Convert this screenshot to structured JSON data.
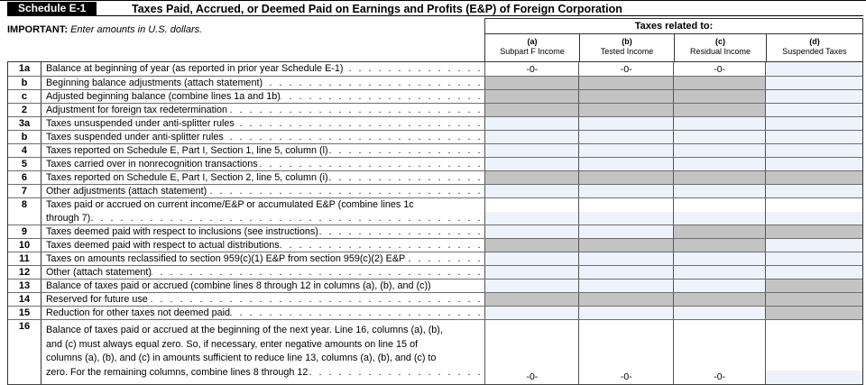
{
  "header": {
    "schedule_label": "Schedule E-1",
    "title": "Taxes Paid, Accrued, or Deemed Paid on Earnings and Profits (E&P) of Foreign Corporation",
    "important_label": "IMPORTANT:",
    "important_note": " Enter amounts in U.S. dollars."
  },
  "columns": {
    "group_label": "Taxes related to:",
    "cols": [
      {
        "letter": "(a)",
        "label": "Subpart F Income"
      },
      {
        "letter": "(b)",
        "label": "Tested Income"
      },
      {
        "letter": "(c)",
        "label": "Residual Income"
      },
      {
        "letter": "(d)",
        "label": "Suspended Taxes"
      }
    ]
  },
  "colors": {
    "shaded": "#c3c3c3",
    "fillable": "#eef2fb"
  },
  "leader_dots": ". . . . . . . . . . . . . . . . . . . . . . . . . . . . . . . . . . . . . . . . . . . . . . . . . . . . . . . . . . . . . . . . . . . . . . . . . . . . . . . .",
  "rows": [
    {
      "num": "1a",
      "lines": [
        "Balance at beginning of year (as reported in prior year Schedule E-1)"
      ],
      "leader": true,
      "h": 15,
      "cells": [
        {
          "fill": "white",
          "value": "-0-"
        },
        {
          "fill": "white",
          "value": "-0-"
        },
        {
          "fill": "white",
          "value": "-0-"
        },
        {
          "fill": "blue"
        }
      ]
    },
    {
      "num": "b",
      "lines": [
        "Beginning balance adjustments (attach statement)"
      ],
      "leader": true,
      "h": 15,
      "cells": [
        {
          "fill": "gray"
        },
        {
          "fill": "gray"
        },
        {
          "fill": "gray"
        },
        {
          "fill": "blue"
        }
      ]
    },
    {
      "num": "c",
      "lines": [
        "Adjusted beginning balance (combine lines 1a and 1b)"
      ],
      "leader": true,
      "h": 15,
      "cells": [
        {
          "fill": "gray"
        },
        {
          "fill": "gray"
        },
        {
          "fill": "gray"
        },
        {
          "fill": "blue"
        }
      ]
    },
    {
      "num": "2",
      "lines": [
        "Adjustment for foreign tax redetermination"
      ],
      "leader": true,
      "h": 15,
      "cells": [
        {
          "fill": "gray"
        },
        {
          "fill": "gray"
        },
        {
          "fill": "gray"
        },
        {
          "fill": "blue"
        }
      ]
    },
    {
      "num": "3a",
      "lines": [
        "Taxes unsuspended under anti-splitter rules"
      ],
      "leader": true,
      "h": 15,
      "cells": [
        {
          "fill": "blue"
        },
        {
          "fill": "blue"
        },
        {
          "fill": "blue"
        },
        {
          "fill": "blue"
        }
      ]
    },
    {
      "num": "b",
      "lines": [
        "Taxes suspended under anti-splitter rules"
      ],
      "leader": true,
      "h": 15,
      "cells": [
        {
          "fill": "blue"
        },
        {
          "fill": "blue"
        },
        {
          "fill": "blue"
        },
        {
          "fill": "blue"
        }
      ]
    },
    {
      "num": "4",
      "lines": [
        "Taxes reported on Schedule E, Part I, Section 1, line 5, column (l)"
      ],
      "leader": true,
      "h": 15,
      "cells": [
        {
          "fill": "blue"
        },
        {
          "fill": "blue"
        },
        {
          "fill": "blue"
        },
        {
          "fill": "blue"
        }
      ]
    },
    {
      "num": "5",
      "lines": [
        "Taxes carried over in nonrecognition transactions"
      ],
      "leader": true,
      "h": 15,
      "cells": [
        {
          "fill": "blue"
        },
        {
          "fill": "blue"
        },
        {
          "fill": "blue"
        },
        {
          "fill": "blue"
        }
      ]
    },
    {
      "num": "6",
      "lines": [
        "Taxes reported on Schedule E, Part I, Section 2, line 5, column (i)"
      ],
      "leader": true,
      "h": 15,
      "cells": [
        {
          "fill": "gray"
        },
        {
          "fill": "gray"
        },
        {
          "fill": "gray"
        },
        {
          "fill": "gray"
        }
      ]
    },
    {
      "num": "7",
      "lines": [
        "Other adjustments (attach statement)"
      ],
      "leader": true,
      "h": 15,
      "cells": [
        {
          "fill": "blue"
        },
        {
          "fill": "blue"
        },
        {
          "fill": "blue"
        },
        {
          "fill": "blue"
        }
      ]
    },
    {
      "num": "8",
      "lines": [
        "Taxes paid or accrued on current income/E&P or accumulated E&P (combine lines 1c",
        "through 7)"
      ],
      "leader": true,
      "h": 30,
      "tall": true,
      "cells": [
        {
          "fill": "split"
        },
        {
          "fill": "split"
        },
        {
          "fill": "split"
        },
        {
          "fill": "split"
        }
      ]
    },
    {
      "num": "9",
      "lines": [
        "Taxes deemed paid with respect to inclusions (see instructions)"
      ],
      "leader": true,
      "h": 15,
      "cells": [
        {
          "fill": "blue"
        },
        {
          "fill": "blue"
        },
        {
          "fill": "gray"
        },
        {
          "fill": "gray"
        }
      ]
    },
    {
      "num": "10",
      "lines": [
        "Taxes deemed paid with respect to actual distributions"
      ],
      "leader": true,
      "h": 15,
      "cells": [
        {
          "fill": "gray"
        },
        {
          "fill": "gray"
        },
        {
          "fill": "gray"
        },
        {
          "fill": "blue"
        }
      ]
    },
    {
      "num": "11",
      "lines": [
        "Taxes on amounts reclassified to section 959(c)(1) E&P from section 959(c)(2) E&P"
      ],
      "leader": true,
      "h": 15,
      "cells": [
        {
          "fill": "blue"
        },
        {
          "fill": "blue"
        },
        {
          "fill": "blue"
        },
        {
          "fill": "blue"
        }
      ]
    },
    {
      "num": "12",
      "lines": [
        "Other (attach statement)"
      ],
      "leader": true,
      "h": 15,
      "cells": [
        {
          "fill": "blue"
        },
        {
          "fill": "blue"
        },
        {
          "fill": "blue"
        },
        {
          "fill": "blue"
        }
      ]
    },
    {
      "num": "13",
      "lines": [
        "Balance of taxes paid or accrued (combine lines 8 through 12 in columns (a), (b), and (c))"
      ],
      "leader": false,
      "h": 15,
      "cells": [
        {
          "fill": "blue"
        },
        {
          "fill": "blue"
        },
        {
          "fill": "blue"
        },
        {
          "fill": "gray"
        }
      ]
    },
    {
      "num": "14",
      "lines": [
        "Reserved for future use"
      ],
      "leader": true,
      "h": 15,
      "cells": [
        {
          "fill": "gray"
        },
        {
          "fill": "gray"
        },
        {
          "fill": "gray"
        },
        {
          "fill": "gray"
        }
      ]
    },
    {
      "num": "15",
      "lines": [
        "Reduction for other taxes not deemed paid"
      ],
      "leader": true,
      "h": 15,
      "cells": [
        {
          "fill": "blue"
        },
        {
          "fill": "blue"
        },
        {
          "fill": "blue"
        },
        {
          "fill": "gray"
        }
      ]
    },
    {
      "num": "16",
      "lines": [
        "Balance of taxes paid or accrued at the beginning of the next year. Line 16, columns (a), (b),",
        "and (c) must always equal zero. So, if necessary, enter negative amounts on line 15 of",
        "columns (a), (b), and (c) in amounts sufficient to reduce line 13, columns (a), (b), and (c) to",
        "zero. For the remaining columns, combine lines 8 through 12"
      ],
      "leader": true,
      "h": 72,
      "r16": true,
      "cells": [
        {
          "fill": "white",
          "value": "-0-"
        },
        {
          "fill": "white",
          "value": "-0-"
        },
        {
          "fill": "white",
          "value": "-0-"
        },
        {
          "fill": "split16"
        }
      ]
    }
  ]
}
